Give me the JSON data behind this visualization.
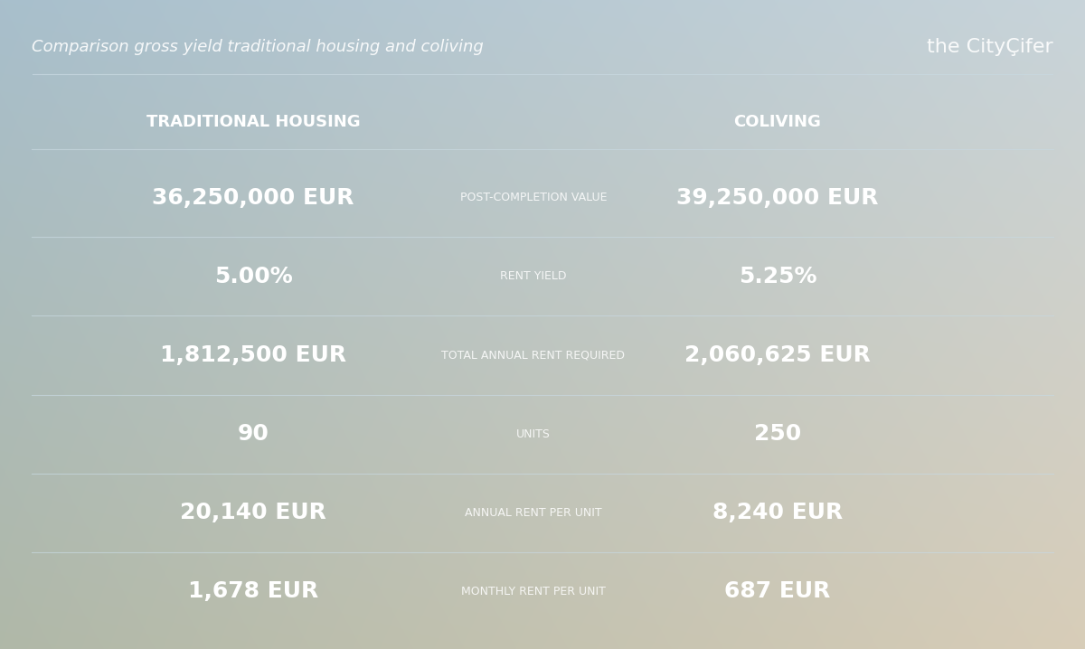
{
  "title": "Comparison gross yield traditional housing and coliving",
  "brand": "the CityÇifer",
  "header_left": "TRADITIONAL HOUSING",
  "header_right": "COLIVING",
  "rows": [
    {
      "label": "POST-COMPLETION VALUE",
      "left": "36,250,000 EUR",
      "right": "39,250,000 EUR"
    },
    {
      "label": "RENT YIELD",
      "left": "5.00%",
      "right": "5.25%"
    },
    {
      "label": "TOTAL ANNUAL RENT REQUIRED",
      "left": "1,812,500 EUR",
      "right": "2,060,625 EUR"
    },
    {
      "label": "UNITS",
      "left": "90",
      "right": "250"
    },
    {
      "label": "ANNUAL RENT PER UNIT",
      "left": "20,140 EUR",
      "right": "8,240 EUR"
    },
    {
      "label": "MONTHLY RENT PER UNIT",
      "left": "1,678 EUR",
      "right": "687 EUR"
    }
  ],
  "bg_color_top_left": "#a8bfcc",
  "bg_color_top_right": "#c8d4d8",
  "bg_color_bottom_left": "#b0b8a8",
  "bg_color_bottom_right": "#d8cdb8",
  "text_color": "#ffffff",
  "line_color": "#c8d8e0",
  "title_fontsize": 13,
  "brand_fontsize": 16,
  "header_fontsize": 13,
  "value_fontsize": 18,
  "label_fontsize": 9
}
